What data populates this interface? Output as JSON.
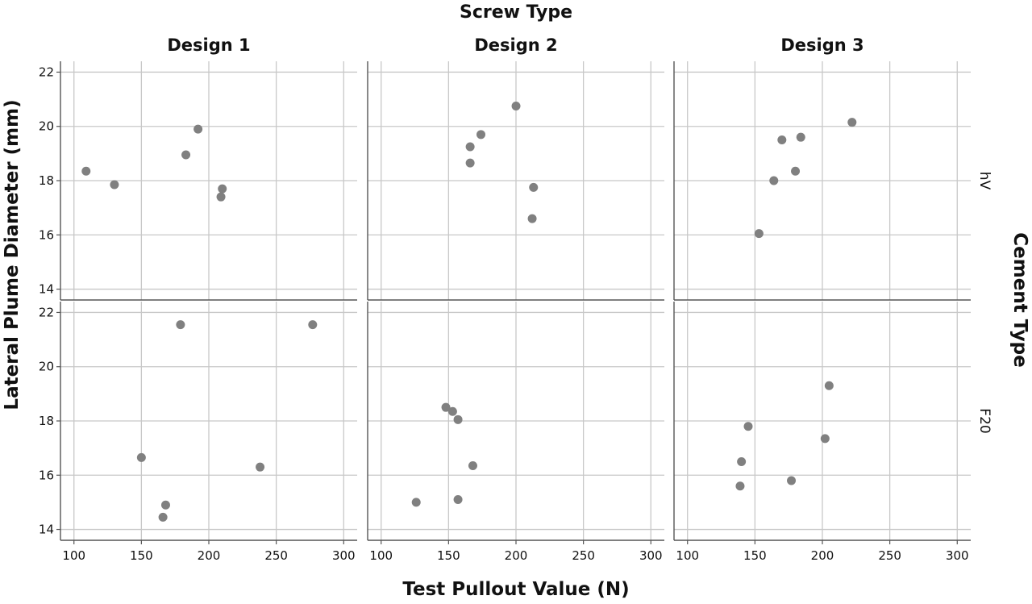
{
  "chart_data": {
    "type": "scatter",
    "title": "Screw Type",
    "xlabel": "Test Pullout Value (N)",
    "ylabel": "Lateral Plume Diameter (mm)",
    "row_facet_label": "Cement Type",
    "xlim": [
      90,
      310
    ],
    "ylim": [
      13.6,
      22.4
    ],
    "x_ticks": [
      100,
      150,
      200,
      250,
      300
    ],
    "y_ticks": [
      14,
      16,
      18,
      20,
      22
    ],
    "grid": true,
    "marker_color": "#808080",
    "columns": [
      "Design 1",
      "Design 2",
      "Design 3"
    ],
    "rows": [
      "hV",
      "F20"
    ],
    "panels": [
      {
        "column": "Design 1",
        "row": "hV",
        "points": [
          {
            "x": 109,
            "y": 18.35
          },
          {
            "x": 130,
            "y": 17.85
          },
          {
            "x": 183,
            "y": 18.95
          },
          {
            "x": 192,
            "y": 19.9
          },
          {
            "x": 210,
            "y": 17.7
          },
          {
            "x": 209,
            "y": 17.4
          }
        ]
      },
      {
        "column": "Design 2",
        "row": "hV",
        "points": [
          {
            "x": 166,
            "y": 19.25
          },
          {
            "x": 166,
            "y": 18.65
          },
          {
            "x": 174,
            "y": 19.7
          },
          {
            "x": 200,
            "y": 20.75
          },
          {
            "x": 213,
            "y": 17.75
          },
          {
            "x": 212,
            "y": 16.6
          }
        ]
      },
      {
        "column": "Design 3",
        "row": "hV",
        "points": [
          {
            "x": 170,
            "y": 19.5
          },
          {
            "x": 184,
            "y": 19.6
          },
          {
            "x": 222,
            "y": 20.15
          },
          {
            "x": 164,
            "y": 18.0
          },
          {
            "x": 180,
            "y": 18.35
          },
          {
            "x": 153,
            "y": 16.05
          }
        ]
      },
      {
        "column": "Design 1",
        "row": "F20",
        "points": [
          {
            "x": 179,
            "y": 21.55
          },
          {
            "x": 277,
            "y": 21.55
          },
          {
            "x": 150,
            "y": 16.65
          },
          {
            "x": 238,
            "y": 16.3
          },
          {
            "x": 168,
            "y": 14.9
          },
          {
            "x": 166,
            "y": 14.45
          }
        ]
      },
      {
        "column": "Design 2",
        "row": "F20",
        "points": [
          {
            "x": 148,
            "y": 18.5
          },
          {
            "x": 153,
            "y": 18.35
          },
          {
            "x": 157,
            "y": 18.05
          },
          {
            "x": 168,
            "y": 16.35
          },
          {
            "x": 126,
            "y": 15.0
          },
          {
            "x": 157,
            "y": 15.1
          }
        ]
      },
      {
        "column": "Design 3",
        "row": "F20",
        "points": [
          {
            "x": 205,
            "y": 19.3
          },
          {
            "x": 145,
            "y": 17.8
          },
          {
            "x": 202,
            "y": 17.35
          },
          {
            "x": 140,
            "y": 16.5
          },
          {
            "x": 139,
            "y": 15.6
          },
          {
            "x": 177,
            "y": 15.8
          }
        ]
      }
    ]
  }
}
